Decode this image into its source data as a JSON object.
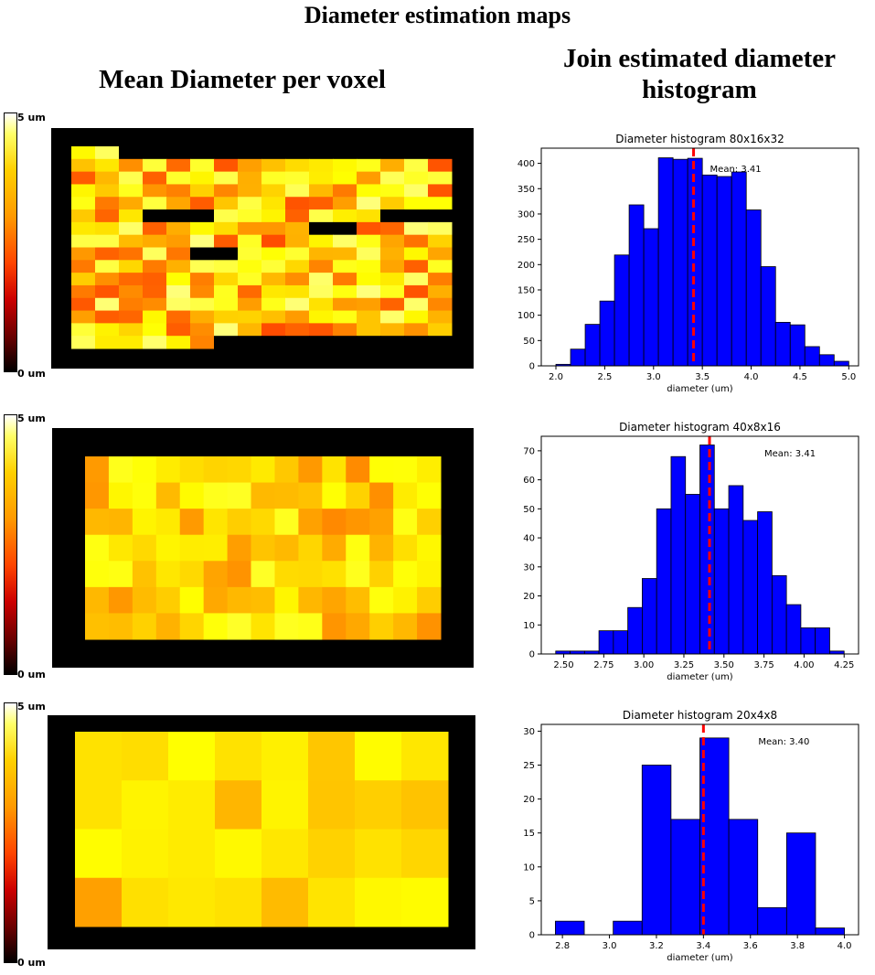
{
  "page_title": "Diameter estimation maps",
  "left_heading": "Mean Diameter per voxel",
  "right_heading": "Join estimated diameter histogram",
  "colorbar": {
    "max_label": "5 um",
    "min_label": "0 um",
    "colormap": "hot"
  },
  "chart_data": [
    {
      "type": "heatmap",
      "grid_cols": 16,
      "grid_rows": 16,
      "value_range": [
        0,
        5
      ],
      "seed": 11,
      "mean": 3.41,
      "spread": 0.55
    },
    {
      "type": "heatmap",
      "grid_cols": 15,
      "grid_rows": 7,
      "value_range": [
        0,
        5
      ],
      "seed": 23,
      "mean": 3.41,
      "spread": 0.3
    },
    {
      "type": "heatmap",
      "grid_cols": 8,
      "grid_rows": 4,
      "value_range": [
        0,
        5
      ],
      "seed": 37,
      "mean": 3.4,
      "spread": 0.2
    },
    {
      "type": "bar",
      "title": "Diameter histogram 80x16x32",
      "xlabel": "diameter (um)",
      "ylabel": "",
      "bin_edges": [
        2.0,
        2.15,
        2.3,
        2.45,
        2.6,
        2.75,
        2.9,
        3.05,
        3.2,
        3.35,
        3.5,
        3.65,
        3.8,
        3.95,
        4.1,
        4.25,
        4.4,
        4.55,
        4.7,
        4.85,
        5.0
      ],
      "values": [
        3,
        33,
        82,
        128,
        219,
        318,
        271,
        411,
        408,
        410,
        377,
        374,
        383,
        308,
        196,
        86,
        81,
        38,
        22,
        9
      ],
      "xlim": [
        1.85,
        5.1
      ],
      "ylim": [
        0,
        430
      ],
      "xticks": [
        "2.0",
        "2.5",
        "3.0",
        "3.5",
        "4.0",
        "4.5",
        "5.0"
      ],
      "yticks": [
        "0",
        "50",
        "100",
        "150",
        "200",
        "250",
        "300",
        "350",
        "400"
      ],
      "mean": 3.41,
      "mean_label": "Mean: 3.41",
      "color": "#0000ff",
      "mean_color": "#ff0000"
    },
    {
      "type": "bar",
      "title": "Diameter histogram 40x8x16",
      "xlabel": "diameter (um)",
      "ylabel": "",
      "bin_edges": [
        2.45,
        2.54,
        2.63,
        2.72,
        2.81,
        2.9,
        2.99,
        3.08,
        3.17,
        3.26,
        3.35,
        3.44,
        3.53,
        3.62,
        3.71,
        3.8,
        3.89,
        3.98,
        4.07,
        4.16,
        4.25
      ],
      "values": [
        1,
        1,
        1,
        8,
        8,
        16,
        26,
        50,
        68,
        55,
        72,
        50,
        58,
        46,
        49,
        27,
        17,
        9,
        9,
        1
      ],
      "xlim": [
        2.36,
        4.34
      ],
      "ylim": [
        0,
        75
      ],
      "xticks": [
        "2.50",
        "2.75",
        "3.00",
        "3.25",
        "3.50",
        "3.75",
        "4.00",
        "4.25"
      ],
      "yticks": [
        "0",
        "10",
        "20",
        "30",
        "40",
        "50",
        "60",
        "70"
      ],
      "mean": 3.41,
      "mean_label": "Mean: 3.41",
      "color": "#0000ff",
      "mean_color": "#ff0000"
    },
    {
      "type": "bar",
      "title": "Diameter histogram 20x4x8",
      "xlabel": "diameter (um)",
      "ylabel": "",
      "bin_edges": [
        2.77,
        2.893,
        3.016,
        3.139,
        3.262,
        3.385,
        3.508,
        3.631,
        3.754,
        3.877,
        4.0
      ],
      "values": [
        2,
        0,
        2,
        25,
        17,
        29,
        17,
        4,
        15,
        1
      ],
      "xlim": [
        2.71,
        4.06
      ],
      "ylim": [
        0,
        31
      ],
      "xticks": [
        "2.8",
        "3.0",
        "3.2",
        "3.4",
        "3.6",
        "3.8",
        "4.0"
      ],
      "yticks": [
        "0",
        "5",
        "10",
        "15",
        "20",
        "25",
        "30"
      ],
      "mean": 3.4,
      "mean_label": "Mean: 3.40",
      "color": "#0000ff",
      "mean_color": "#ff0000"
    }
  ]
}
